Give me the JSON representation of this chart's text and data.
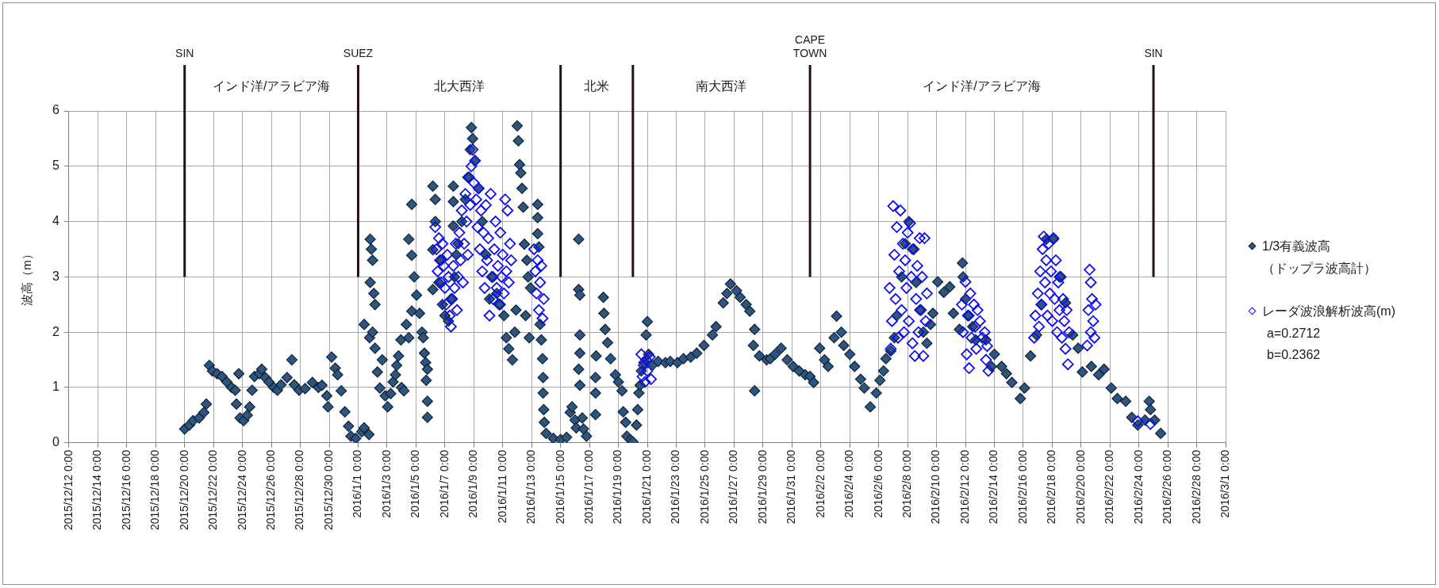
{
  "chart_data": {
    "type": "scatter",
    "ylabel": "波高（m）",
    "xlim": [
      "2015-12-12",
      "2016-03-01"
    ],
    "xticks": [
      {
        "value": "2015-12-12",
        "label": "2015/12/12 0:00"
      },
      {
        "value": "2015-12-14",
        "label": "2015/12/14 0:00"
      },
      {
        "value": "2015-12-16",
        "label": "2015/12/16 0:00"
      },
      {
        "value": "2015-12-18",
        "label": "2015/12/18 0:00"
      },
      {
        "value": "2015-12-20",
        "label": "2015/12/20 0:00"
      },
      {
        "value": "2015-12-22",
        "label": "2015/12/22 0:00"
      },
      {
        "value": "2015-12-24",
        "label": "2015/12/24 0:00"
      },
      {
        "value": "2015-12-26",
        "label": "2015/12/26 0:00"
      },
      {
        "value": "2015-12-28",
        "label": "2015/12/28 0:00"
      },
      {
        "value": "2015-12-30",
        "label": "2015/12/30 0:00"
      },
      {
        "value": "2016-01-01",
        "label": "2016/1/1 0:00"
      },
      {
        "value": "2016-01-03",
        "label": "2016/1/3 0:00"
      },
      {
        "value": "2016-01-05",
        "label": "2016/1/5 0:00"
      },
      {
        "value": "2016-01-07",
        "label": "2016/1/7 0:00"
      },
      {
        "value": "2016-01-09",
        "label": "2016/1/9 0:00"
      },
      {
        "value": "2016-01-11",
        "label": "2016/1/11 0:00"
      },
      {
        "value": "2016-01-13",
        "label": "2016/1/13 0:00"
      },
      {
        "value": "2016-01-15",
        "label": "2016/1/15 0:00"
      },
      {
        "value": "2016-01-17",
        "label": "2016/1/17 0:00"
      },
      {
        "value": "2016-01-19",
        "label": "2016/1/19 0:00"
      },
      {
        "value": "2016-01-21",
        "label": "2016/1/21 0:00"
      },
      {
        "value": "2016-01-23",
        "label": "2016/1/23 0:00"
      },
      {
        "value": "2016-01-25",
        "label": "2016/1/25 0:00"
      },
      {
        "value": "2016-01-27",
        "label": "2016/1/27 0:00"
      },
      {
        "value": "2016-01-29",
        "label": "2016/1/29 0:00"
      },
      {
        "value": "2016-01-31",
        "label": "2016/1/31 0:00"
      },
      {
        "value": "2016-02-02",
        "label": "2016/2/2 0:00"
      },
      {
        "value": "2016-02-04",
        "label": "2016/2/4 0:00"
      },
      {
        "value": "2016-02-06",
        "label": "2016/2/6 0:00"
      },
      {
        "value": "2016-02-08",
        "label": "2016/2/8 0:00"
      },
      {
        "value": "2016-02-10",
        "label": "2016/2/10 0:00"
      },
      {
        "value": "2016-02-12",
        "label": "2016/2/12 0:00"
      },
      {
        "value": "2016-02-14",
        "label": "2016/2/14 0:00"
      },
      {
        "value": "2016-02-16",
        "label": "2016/2/16 0:00"
      },
      {
        "value": "2016-02-18",
        "label": "2016/2/18 0:00"
      },
      {
        "value": "2016-02-20",
        "label": "2016/2/20 0:00"
      },
      {
        "value": "2016-02-22",
        "label": "2016/2/22 0:00"
      },
      {
        "value": "2016-02-24",
        "label": "2016/2/24 0:00"
      },
      {
        "value": "2016-02-26",
        "label": "2016/2/26 0:00"
      },
      {
        "value": "2016-02-28",
        "label": "2016/2/28 0:00"
      },
      {
        "value": "2016-03-01",
        "label": "2016/3/1 0:00"
      }
    ],
    "ylim": [
      0,
      6
    ],
    "yticks": [
      0,
      1,
      2,
      3,
      4,
      5,
      6
    ],
    "grid": true,
    "legend": "right",
    "marker": "diamond",
    "series": [
      {
        "name": "1/3有義波高（ドップラ波高計）",
        "color": "#2c5680",
        "x": [
          "2015-12-20T00:00",
          "2015-12-20T08:00",
          "2015-12-20T14:00",
          "2015-12-21T00:00",
          "2015-12-21T08:00",
          "2015-12-21T12:00",
          "2015-12-21T17:00",
          "2015-12-21T22:00",
          "2015-12-22T06:00",
          "2015-12-22T14:00",
          "2015-12-22T22:00",
          "2015-12-23T06:00",
          "2015-12-23T12:00",
          "2015-12-23T14:00",
          "2015-12-23T18:00",
          "2015-12-23T20:00",
          "2015-12-24T02:00",
          "2015-12-24T08:00",
          "2015-12-24T12:00",
          "2015-12-24T16:00",
          "2015-12-24T20:00",
          "2015-12-25T04:00",
          "2015-12-25T08:00",
          "2015-12-25T14:00",
          "2015-12-25T20:00",
          "2015-12-26T04:00",
          "2015-12-26T10:00",
          "2015-12-26T16:00",
          "2015-12-27T02:00",
          "2015-12-27T10:00",
          "2015-12-27T14:00",
          "2015-12-27T22:00",
          "2015-12-28T08:00",
          "2015-12-28T20:00",
          "2015-12-29T06:00",
          "2015-12-29T12:00",
          "2015-12-29T20:00",
          "2015-12-29T22:00",
          "2015-12-30T04:00",
          "2015-12-30T10:00",
          "2015-12-30T14:00",
          "2015-12-30T20:00",
          "2015-12-31T02:00",
          "2015-12-31T08:00",
          "2015-12-31T12:00",
          "2015-12-31T20:00",
          "2016-01-01T06:00",
          "2016-01-01T10:00",
          "2016-01-01T18:00",
          "2016-01-01T10:00",
          "2016-01-01T19:00",
          "2016-01-01T20:00",
          "2016-01-01T20:00",
          "2016-01-01T22:00",
          "2016-01-02T00:00",
          "2016-01-02T00:00",
          "2016-01-02T02:00",
          "2016-01-02T04:00",
          "2016-01-02T04:00",
          "2016-01-02T08:00",
          "2016-01-02T12:00",
          "2016-01-02T16:00",
          "2016-01-02T21:00",
          "2016-01-03T01:00",
          "2016-01-03T06:00",
          "2016-01-03T10:00",
          "2016-01-03T14:00",
          "2016-01-03T16:00",
          "2016-01-03T19:00",
          "2016-01-03T23:00",
          "2016-01-04T00:00",
          "2016-01-04T04:00",
          "2016-01-04T08:00",
          "2016-01-04T12:00",
          "2016-01-04T12:00",
          "2016-01-04T17:00",
          "2016-01-04T17:00",
          "2016-01-04T17:00",
          "2016-01-04T21:00",
          "2016-01-05T01:00",
          "2016-01-05T06:00",
          "2016-01-05T10:00",
          "2016-01-05T12:00",
          "2016-01-05T14:00",
          "2016-01-05T16:00",
          "2016-01-05T17:00",
          "2016-01-05T19:00",
          "2016-01-05T19:00",
          "2016-01-05T19:00",
          "2016-01-06T04:00",
          "2016-01-06T04:00",
          "2016-01-06T04:00",
          "2016-01-06T08:00",
          "2016-01-06T08:00",
          "2016-01-06T14:00",
          "2016-01-06T18:00",
          "2016-01-06T20:00",
          "2016-01-07T00:00",
          "2016-01-07T06:00",
          "2016-01-07T10:00",
          "2016-01-07T14:00",
          "2016-01-07T14:00",
          "2016-01-07T14:00",
          "2016-01-07T16:00",
          "2016-01-07T19:00",
          "2016-01-07T22:00",
          "2016-01-08T04:00",
          "2016-01-08T10:00",
          "2016-01-08T14:00",
          "2016-01-08T18:00",
          "2016-01-08T20:00",
          "2016-01-08T22:00",
          "2016-01-09T02:00",
          "2016-01-09T08:00",
          "2016-01-09T14:00",
          "2016-01-09T20:00",
          "2016-01-10T02:00",
          "2016-01-10T08:00",
          "2016-01-10T14:00",
          "2016-01-10T20:00",
          "2016-01-11T02:00",
          "2016-01-11T06:00",
          "2016-01-11T10:00",
          "2016-01-11T16:00",
          "2016-01-11T20:00",
          "2016-01-11T22:00",
          "2016-01-12T00:00",
          "2016-01-12T02:00",
          "2016-01-12T04:00",
          "2016-01-12T06:00",
          "2016-01-12T08:00",
          "2016-01-12T10:00",
          "2016-01-12T12:00",
          "2016-01-12T14:00",
          "2016-01-12T16:00",
          "2016-01-12T18:00",
          "2016-01-12T20:00",
          "2016-01-12T22:00",
          "2016-01-13T10:00",
          "2016-01-13T10:00",
          "2016-01-13T10:00",
          "2016-01-13T12:00",
          "2016-01-13T14:00",
          "2016-01-13T16:00",
          "2016-01-13T18:00",
          "2016-01-13T19:00",
          "2016-01-13T19:00",
          "2016-01-13T20:00",
          "2016-01-13T21:00",
          "2016-01-14T00:00",
          "2016-01-14T12:00",
          "2016-01-15T00:00",
          "2016-01-15T10:00",
          "2016-01-15T16:00",
          "2016-01-15T19:00",
          "2016-01-16T00:00",
          "2016-01-16T02:00",
          "2016-01-16T06:00",
          "2016-01-16T06:00",
          "2016-01-16T06:00",
          "2016-01-16T08:00",
          "2016-01-16T08:00",
          "2016-01-16T08:00",
          "2016-01-16T08:00",
          "2016-01-16T12:00",
          "2016-01-16T14:00",
          "2016-01-16T19:00",
          "2016-01-17T10:00",
          "2016-01-17T10:00",
          "2016-01-17T10:00",
          "2016-01-17T11:00",
          "2016-01-17T23:00",
          "2016-01-18T00:00",
          "2016-01-18T02:00",
          "2016-01-18T06:00",
          "2016-01-18T11:00",
          "2016-01-18T19:00",
          "2016-01-19T00:00",
          "2016-01-19T06:00",
          "2016-01-19T08:00",
          "2016-01-19T12:00",
          "2016-01-19T14:00",
          "2016-01-19T20:00",
          "2016-01-20T00:00",
          "2016-01-20T06:00",
          "2016-01-20T08:00",
          "2016-01-20T10:00",
          "2016-01-20T12:00",
          "2016-01-20T14:00",
          "2016-01-20T18:00",
          "2016-01-20T22:00",
          "2016-01-21T00:00",
          "2016-01-21T02:00",
          "2016-01-21T08:00",
          "2016-01-21T18:00",
          "2016-01-22T06:00",
          "2016-01-22T14:00",
          "2016-01-23T02:00",
          "2016-01-23T12:00",
          "2016-01-24T00:00",
          "2016-01-24T10:00",
          "2016-01-24T22:00",
          "2016-01-25T12:00",
          "2016-01-25T18:00",
          "2016-01-26T06:00",
          "2016-01-26T12:00",
          "2016-01-26T18:00",
          "2016-01-27T04:00",
          "2016-01-27T10:00",
          "2016-01-27T20:00",
          "2016-01-28T02:00",
          "2016-01-28T08:00",
          "2016-01-28T10:00",
          "2016-01-28T10:00",
          "2016-01-28T18:00",
          "2016-01-29T06:00",
          "2016-01-29T12:00",
          "2016-01-29T20:00",
          "2016-01-30T06:00",
          "2016-01-30T16:00",
          "2016-01-31T02:00",
          "2016-01-31T12:00",
          "2016-01-31T22:00",
          "2016-02-01T06:00",
          "2016-02-01T12:00",
          "2016-02-01T22:00",
          "2016-02-02T06:00",
          "2016-02-02T12:00",
          "2016-02-02T22:00",
          "2016-02-03T02:00",
          "2016-02-03T10:00",
          "2016-02-03T14:00",
          "2016-02-04T00:00",
          "2016-02-04T08:00",
          "2016-02-04T18:00",
          "2016-02-05T00:00",
          "2016-02-05T10:00",
          "2016-02-05T20:00",
          "2016-02-06T02:00",
          "2016-02-06T08:00",
          "2016-02-06T12:00",
          "2016-02-06T20:00",
          "2016-02-07T02:00",
          "2016-02-07T06:00",
          "2016-02-07T14:00",
          "2016-02-07T20:00",
          "2016-02-08T02:00",
          "2016-02-08T08:00",
          "2016-02-08T14:00",
          "2016-02-08T20:00",
          "2016-02-09T02:00",
          "2016-02-09T08:00",
          "2016-02-09T14:00",
          "2016-02-09T18:00",
          "2016-02-10T02:00",
          "2016-02-10T12:00",
          "2016-02-10T22:00",
          "2016-02-11T04:00",
          "2016-02-11T14:00",
          "2016-02-11T19:00",
          "2016-02-11T20:00",
          "2016-02-12T00:00",
          "2016-02-12T06:00",
          "2016-02-12T12:00",
          "2016-02-12T17:00",
          "2016-02-13T10:00",
          "2016-02-13T19:00",
          "2016-02-14T00:00",
          "2016-02-14T12:00",
          "2016-02-14T20:00",
          "2016-02-15T05:00",
          "2016-02-15T19:00",
          "2016-02-16T02:00",
          "2016-02-16T12:00",
          "2016-02-16T22:00",
          "2016-02-17T06:00",
          "2016-02-17T14:00",
          "2016-02-18T02:00",
          "2016-02-18T12:00",
          "2016-02-18T22:00",
          "2016-02-19T10:00",
          "2016-02-19T19:00",
          "2016-02-20T02:00",
          "2016-02-20T17:00",
          "2016-02-21T05:00",
          "2016-02-21T14:00",
          "2016-02-22T02:00",
          "2016-02-22T12:00",
          "2016-02-23T02:00",
          "2016-02-23T12:00",
          "2016-02-23T22:00",
          "2016-02-24T10:00",
          "2016-02-24T17:00",
          "2016-02-24T19:00",
          "2016-02-25T02:00",
          "2016-02-25T12:00"
        ],
        "values": [
          0.25,
          0.32,
          0.4,
          0.45,
          0.55,
          0.7,
          1.4,
          1.3,
          1.25,
          1.2,
          1.1,
          1.0,
          0.95,
          0.7,
          1.25,
          0.45,
          0.4,
          0.5,
          0.65,
          0.95,
          1.2,
          1.25,
          1.33,
          1.18,
          1.1,
          1.0,
          0.95,
          1.05,
          1.18,
          1.5,
          1.05,
          0.95,
          0.98,
          1.09,
          1.0,
          1.04,
          0.85,
          0.65,
          1.55,
          1.35,
          1.23,
          0.94,
          0.56,
          0.3,
          0.12,
          0.08,
          0.2,
          0.27,
          0.15,
          2.14,
          1.9,
          3.68,
          2.9,
          3.5,
          3.3,
          2.0,
          2.7,
          2.5,
          1.71,
          1.28,
          0.99,
          1.5,
          0.85,
          0.65,
          0.89,
          1.1,
          1.23,
          1.4,
          1.57,
          1.86,
          1.0,
          0.94,
          2.14,
          1.9,
          3.68,
          4.31,
          3.39,
          2.38,
          3.0,
          2.67,
          2.34,
          2.0,
          1.9,
          1.62,
          1.45,
          1.13,
          1.33,
          0.75,
          0.46,
          4.64,
          3.49,
          2.77,
          4.4,
          4.0,
          2.9,
          3.3,
          2.5,
          2.3,
          2.2,
          2.6,
          4.64,
          4.36,
          3.92,
          3.0,
          3.4,
          3.6,
          4.0,
          4.4,
          4.8,
          5.3,
          5.7,
          5.5,
          5.1,
          4.6,
          4.0,
          3.4,
          2.6,
          3.0,
          2.7,
          2.5,
          2.3,
          1.9,
          1.7,
          1.5,
          2.0,
          2.4,
          5.73,
          5.46,
          5.03,
          4.88,
          4.6,
          4.26,
          3.59,
          2.3,
          3.3,
          3.0,
          1.9,
          2.8,
          4.31,
          4.07,
          3.78,
          3.54,
          2.14,
          1.86,
          1.52,
          1.18,
          0.9,
          0.6,
          0.37,
          0.17,
          0.08,
          0.06,
          0.1,
          0.55,
          0.65,
          0.41,
          0.27,
          3.68,
          2.77,
          1.33,
          2.67,
          1.95,
          1.62,
          1.04,
          0.45,
          0.25,
          0.12,
          0.51,
          0.9,
          1.18,
          1.57,
          2.63,
          2.34,
          2.05,
          1.81,
          1.52,
          1.23,
          1.1,
          0.94,
          0.56,
          0.37,
          0.12,
          0.05,
          0.02,
          0.32,
          0.6,
          0.9,
          1.04,
          1.3,
          1.45,
          1.95,
          2.19,
          1.6,
          1.4,
          1.47,
          1.45,
          1.47,
          1.45,
          1.52,
          1.55,
          1.62,
          1.76,
          1.95,
          2.1,
          2.53,
          2.7,
          2.87,
          2.75,
          2.63,
          2.5,
          2.38,
          1.76,
          2.05,
          0.94,
          1.57,
          1.5,
          1.52,
          1.6,
          1.71,
          1.5,
          1.38,
          1.3,
          1.23,
          1.2,
          1.09,
          1.71,
          1.5,
          1.38,
          1.9,
          2.29,
          2.0,
          1.76,
          1.6,
          1.38,
          1.15,
          0.99,
          0.65,
          0.9,
          1.13,
          1.3,
          1.52,
          1.66,
          1.9,
          2.3,
          3.0,
          3.6,
          4.0,
          3.5,
          2.9,
          2.4,
          2.0,
          1.8,
          2.14,
          2.34,
          2.91,
          2.72,
          2.82,
          2.34,
          2.05,
          3.25,
          3.0,
          2.6,
          2.3,
          2.1,
          1.86,
          1.86,
          1.38,
          1.6,
          1.38,
          1.25,
          1.09,
          0.8,
          0.99,
          1.57,
          1.95,
          2.5,
          3.68,
          3.68,
          3.0,
          2.53,
          1.95,
          1.71,
          1.28,
          1.38,
          1.23,
          1.33,
          0.99,
          0.8,
          0.75,
          0.46,
          0.32,
          0.41,
          0.75,
          0.6,
          0.41,
          0.17
        ]
      },
      {
        "name": "レーダ波浪解析波高(m)",
        "color": "#1010f0",
        "x": [
          "2016-01-06T08:00",
          "2016-01-06T10:00",
          "2016-01-06T12:00",
          "2016-01-06T14:00",
          "2016-01-06T16:00",
          "2016-01-06T18:00",
          "2016-01-06T20:00",
          "2016-01-06T22:00",
          "2016-01-07T00:00",
          "2016-01-07T02:00",
          "2016-01-07T04:00",
          "2016-01-07T06:00",
          "2016-01-07T08:00",
          "2016-01-07T10:00",
          "2016-01-07T12:00",
          "2016-01-07T14:00",
          "2016-01-07T16:00",
          "2016-01-07T18:00",
          "2016-01-07T20:00",
          "2016-01-07T22:00",
          "2016-01-08T00:00",
          "2016-01-08T02:00",
          "2016-01-08T04:00",
          "2016-01-08T06:00",
          "2016-01-08T08:00",
          "2016-01-08T10:00",
          "2016-01-08T12:00",
          "2016-01-08T14:00",
          "2016-01-08T16:00",
          "2016-01-08T18:00",
          "2016-01-08T20:00",
          "2016-01-08T22:00",
          "2016-01-09T00:00",
          "2016-01-09T02:00",
          "2016-01-09T04:00",
          "2016-01-09T06:00",
          "2016-01-09T08:00",
          "2016-01-09T10:00",
          "2016-01-09T12:00",
          "2016-01-09T14:00",
          "2016-01-09T16:00",
          "2016-01-09T18:00",
          "2016-01-09T20:00",
          "2016-01-09T22:00",
          "2016-01-10T00:00",
          "2016-01-10T02:00",
          "2016-01-10T04:00",
          "2016-01-10T06:00",
          "2016-01-10T08:00",
          "2016-01-10T10:00",
          "2016-01-10T12:00",
          "2016-01-10T14:00",
          "2016-01-10T16:00",
          "2016-01-10T18:00",
          "2016-01-10T20:00",
          "2016-01-10T22:00",
          "2016-01-11T00:00",
          "2016-01-11T02:00",
          "2016-01-11T04:00",
          "2016-01-11T06:00",
          "2016-01-11T08:00",
          "2016-01-11T10:00",
          "2016-01-11T12:00",
          "2016-01-11T14:00",
          "2016-01-13T04:00",
          "2016-01-13T06:00",
          "2016-01-13T08:00",
          "2016-01-13T10:00",
          "2016-01-13T12:00",
          "2016-01-13T14:00",
          "2016-01-13T16:00",
          "2016-01-13T18:00",
          "2016-01-13T20:00",
          "2016-01-20T14:00",
          "2016-01-20T16:00",
          "2016-01-20T18:00",
          "2016-01-20T20:00",
          "2016-01-20T22:00",
          "2016-01-21T00:00",
          "2016-01-21T04:00",
          "2016-01-21T06:00",
          "2016-02-06T18:00",
          "2016-02-06T20:00",
          "2016-02-06T22:00",
          "2016-02-07T00:00",
          "2016-02-07T02:00",
          "2016-02-07T04:00",
          "2016-02-07T06:00",
          "2016-02-07T08:00",
          "2016-02-07T10:00",
          "2016-02-07T12:00",
          "2016-02-07T14:00",
          "2016-02-07T16:00",
          "2016-02-07T18:00",
          "2016-02-07T20:00",
          "2016-02-07T22:00",
          "2016-02-08T00:00",
          "2016-02-08T02:00",
          "2016-02-08T04:00",
          "2016-02-08T06:00",
          "2016-02-08T08:00",
          "2016-02-08T10:00",
          "2016-02-08T12:00",
          "2016-02-08T14:00",
          "2016-02-08T16:00",
          "2016-02-08T18:00",
          "2016-02-08T20:00",
          "2016-02-08T22:00",
          "2016-02-09T00:00",
          "2016-02-09T02:00",
          "2016-02-09T04:00",
          "2016-02-09T06:00",
          "2016-02-09T08:00",
          "2016-02-11T18:00",
          "2016-02-11T20:00",
          "2016-02-12T00:00",
          "2016-02-12T02:00",
          "2016-02-12T04:00",
          "2016-02-12T06:00",
          "2016-02-12T08:00",
          "2016-02-12T10:00",
          "2016-02-12T14:00",
          "2016-02-12T16:00",
          "2016-02-12T18:00",
          "2016-02-12T20:00",
          "2016-02-13T00:00",
          "2016-02-13T04:00",
          "2016-02-13T08:00",
          "2016-02-13T10:00",
          "2016-02-13T12:00",
          "2016-02-13T14:00",
          "2016-02-16T18:00",
          "2016-02-16T20:00",
          "2016-02-17T00:00",
          "2016-02-17T02:00",
          "2016-02-17T04:00",
          "2016-02-17T06:00",
          "2016-02-17T08:00",
          "2016-02-17T10:00",
          "2016-02-17T12:00",
          "2016-02-17T14:00",
          "2016-02-17T16:00",
          "2016-02-17T18:00",
          "2016-02-17T20:00",
          "2016-02-17T22:00",
          "2016-02-18T00:00",
          "2016-02-18T02:00",
          "2016-02-18T04:00",
          "2016-02-18T06:00",
          "2016-02-18T08:00",
          "2016-02-18T10:00",
          "2016-02-18T12:00",
          "2016-02-18T14:00",
          "2016-02-18T16:00",
          "2016-02-18T18:00",
          "2016-02-18T20:00",
          "2016-02-18T22:00",
          "2016-02-19T00:00",
          "2016-02-19T02:00",
          "2016-02-19T04:00",
          "2016-02-20T10:00",
          "2016-02-20T12:00",
          "2016-02-20T14:00",
          "2016-02-20T16:00",
          "2016-02-20T16:00",
          "2016-02-20T18:00",
          "2016-02-20T20:00",
          "2016-02-20T22:00",
          "2016-02-21T00:00",
          "2016-02-23T22:00",
          "2016-02-24T19:00"
        ],
        "values": [
          3.9,
          3.5,
          3.1,
          3.7,
          3.3,
          2.9,
          3.6,
          3.2,
          2.8,
          2.5,
          3.4,
          3.0,
          2.3,
          2.1,
          2.6,
          3.2,
          2.8,
          3.6,
          2.4,
          3.0,
          3.8,
          3.3,
          4.2,
          2.9,
          3.6,
          4.5,
          4.0,
          3.4,
          4.8,
          4.3,
          5.0,
          5.3,
          4.7,
          5.1,
          4.4,
          3.9,
          4.6,
          3.5,
          4.2,
          3.1,
          3.8,
          2.8,
          4.3,
          3.3,
          3.7,
          2.3,
          4.5,
          3.0,
          2.6,
          3.5,
          4.0,
          2.8,
          3.2,
          2.5,
          3.8,
          3.0,
          3.4,
          2.7,
          4.4,
          3.1,
          4.2,
          2.9,
          3.6,
          3.3,
          3.5,
          3.1,
          2.7,
          3.3,
          2.4,
          2.9,
          3.2,
          2.25,
          2.6,
          1.6,
          1.2,
          1.4,
          1.1,
          1.5,
          1.3,
          1.55,
          1.15,
          2.8,
          1.7,
          2.2,
          4.28,
          3.4,
          2.6,
          3.9,
          1.9,
          3.1,
          4.2,
          2.4,
          3.6,
          2.0,
          3.3,
          2.8,
          3.8,
          2.2,
          3.97,
          3.0,
          1.8,
          3.5,
          1.57,
          2.6,
          3.2,
          2.0,
          3.7,
          2.4,
          3.0,
          1.57,
          3.7,
          2.2,
          2.7,
          2.5,
          2.0,
          2.91,
          1.6,
          2.3,
          1.35,
          2.7,
          1.9,
          2.5,
          2.1,
          1.7,
          2.4,
          2.2,
          1.9,
          2.0,
          1.5,
          1.75,
          1.3,
          1.9,
          2.3,
          2.7,
          2.1,
          3.1,
          2.5,
          3.5,
          3.73,
          2.9,
          3.3,
          2.3,
          3.6,
          2.7,
          3.1,
          2.2,
          3.7,
          2.6,
          3.3,
          2.0,
          2.9,
          2.4,
          3.0,
          1.9,
          2.6,
          2.2,
          1.7,
          2.4,
          1.42,
          2.0,
          1.76,
          2.4,
          3.13,
          2.9,
          2.0,
          2.6,
          2.2,
          1.9,
          2.5,
          0.39,
          0.34
        ]
      }
    ],
    "ref_lines": [
      {
        "axis": "x",
        "value": "2015-12-20",
        "label": "SIN",
        "color": "#201414"
      },
      {
        "axis": "x",
        "value": "2016-01-01",
        "label": "SUEZ",
        "color": "#201414"
      },
      {
        "axis": "x",
        "value": "2016-01-15",
        "color": "#201414"
      },
      {
        "axis": "x",
        "value": "2016-01-20",
        "color": "#201414"
      },
      {
        "axis": "x",
        "value": "2016-02-01T06:00",
        "label": "CAPE TOWN",
        "color": "#201414"
      },
      {
        "axis": "x",
        "value": "2016-02-25",
        "label": "SIN",
        "color": "#201414"
      }
    ],
    "annotations": [
      "インド洋/アラビア海",
      "北大西洋",
      "北米",
      "南大西洋",
      "インド洋/アラビア海",
      "a=0.2712",
      "b=0.2362"
    ]
  }
}
